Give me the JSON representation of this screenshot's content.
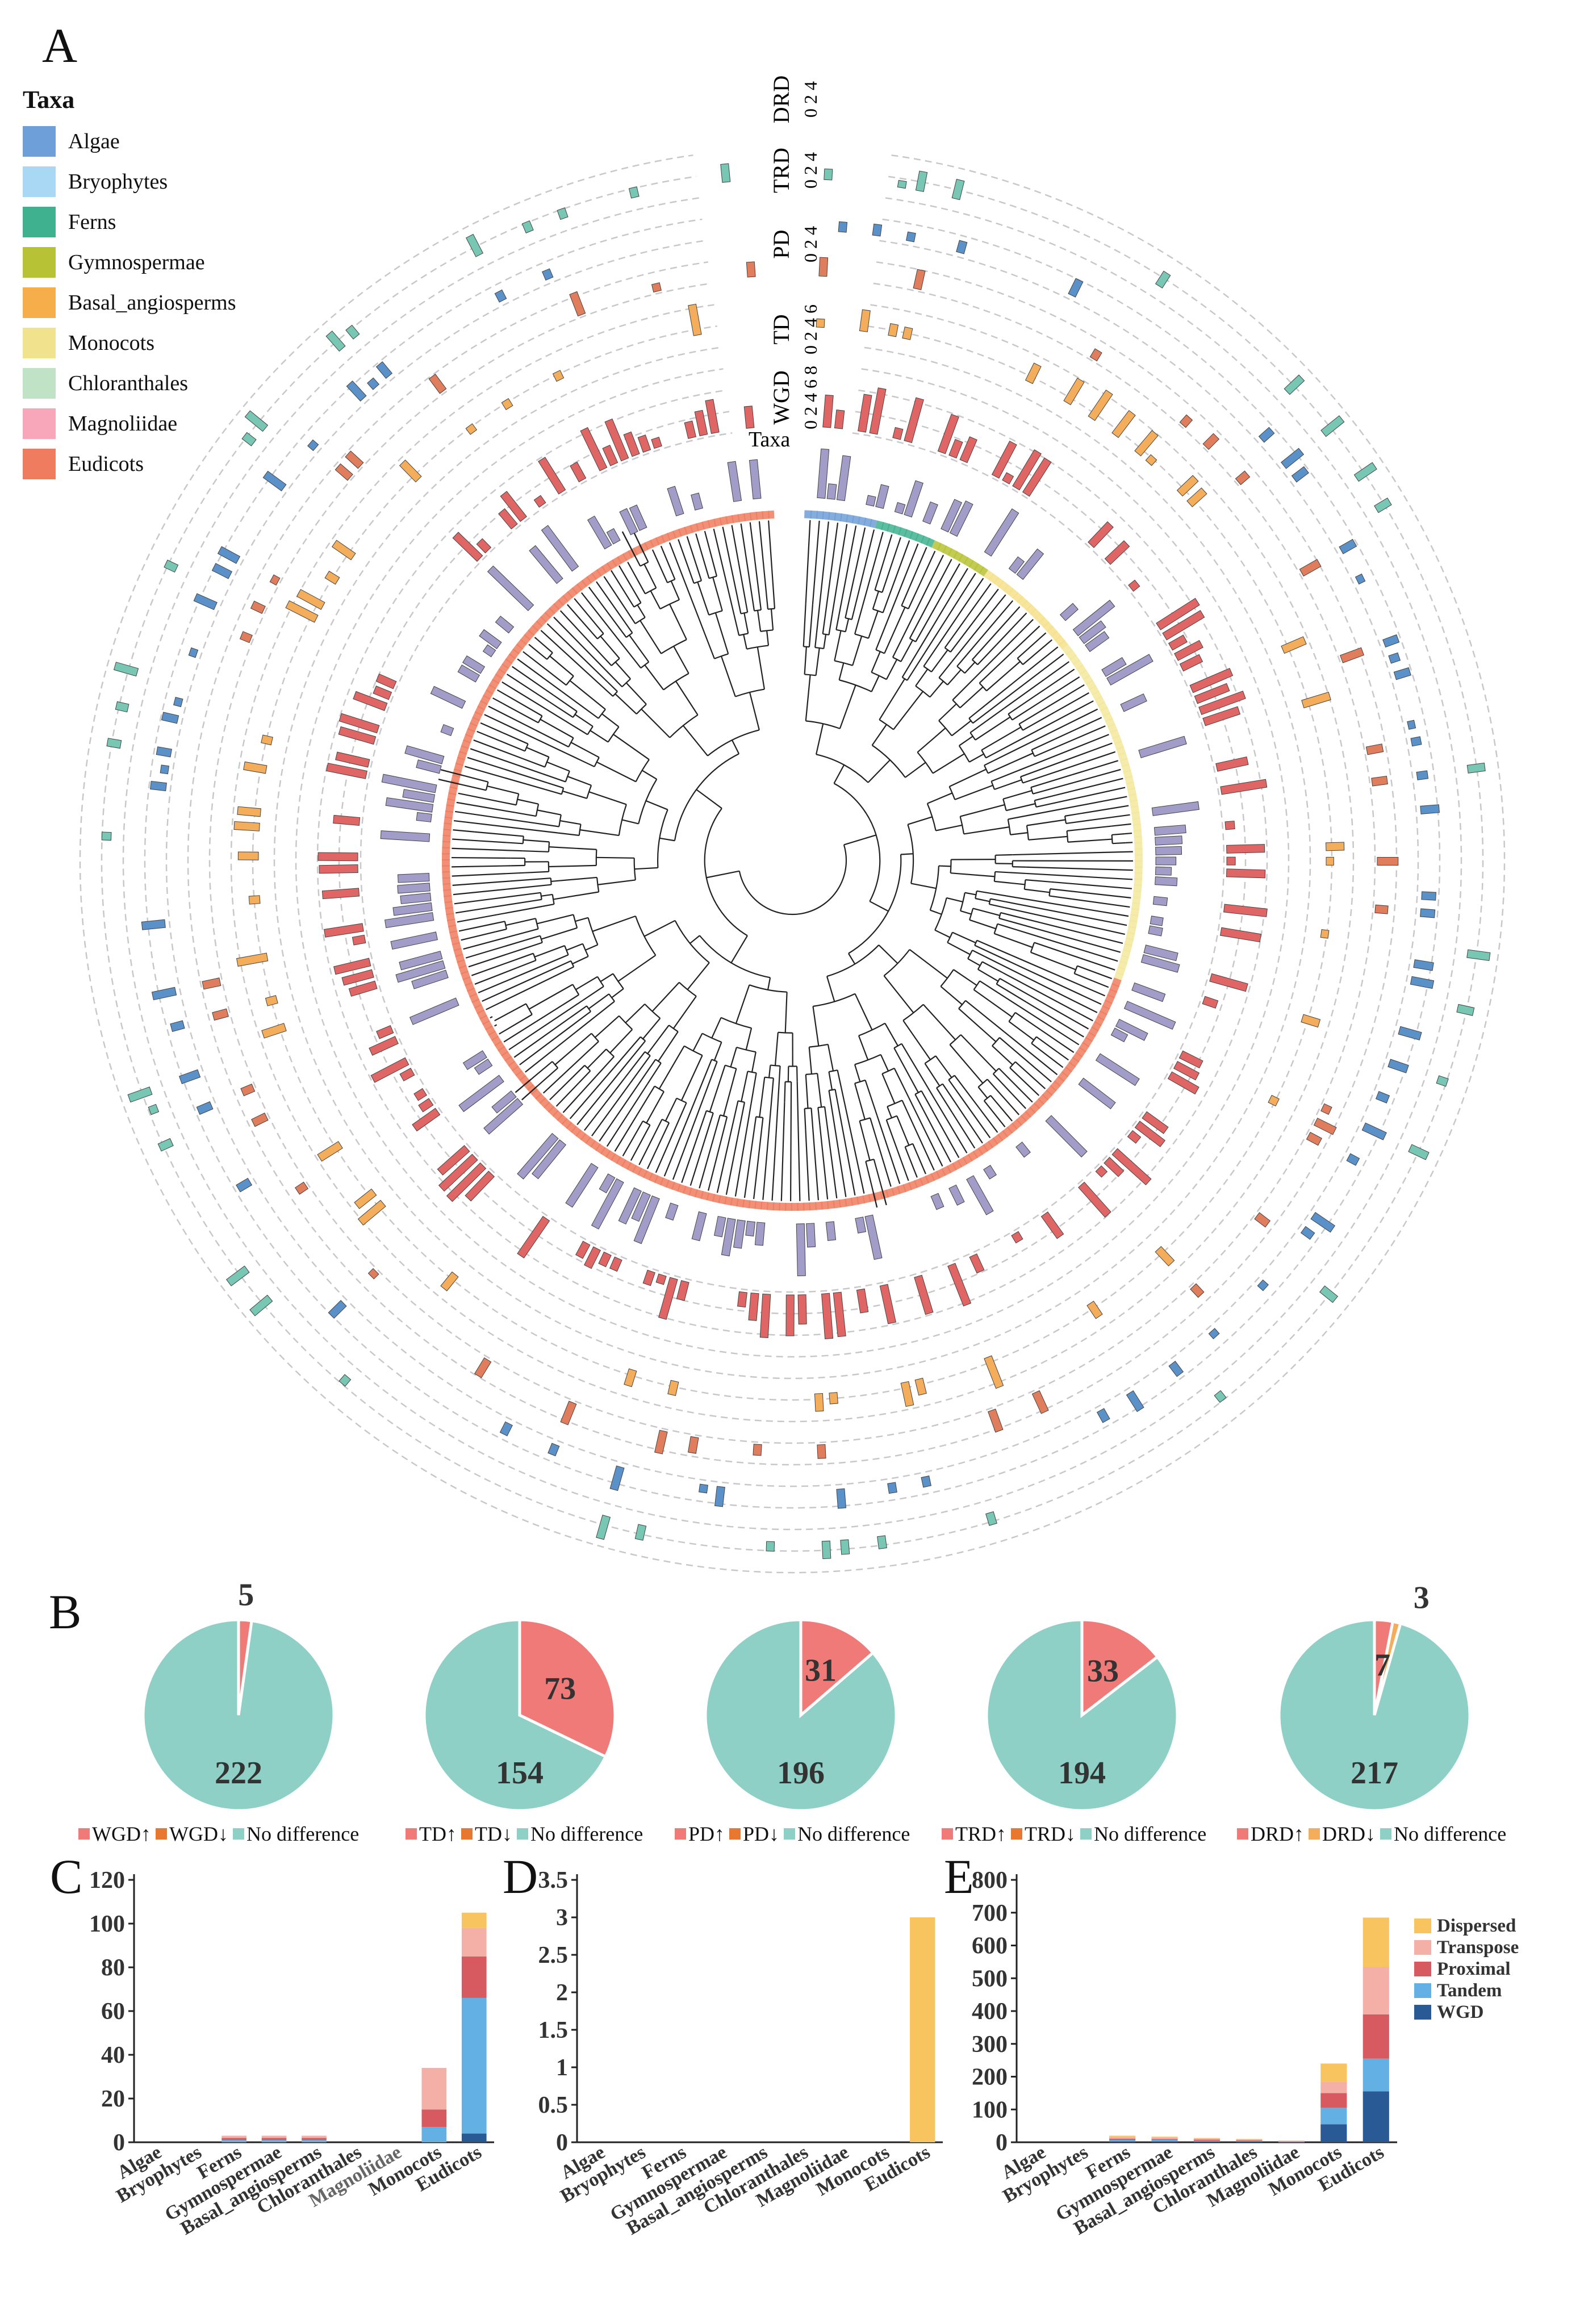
{
  "panels": {
    "a": "A",
    "b": "B",
    "c": "C",
    "d": "D",
    "e": "E"
  },
  "taxa_legend": {
    "title": "Taxa",
    "items": [
      {
        "label": "Algae",
        "color": "#6f9fd8"
      },
      {
        "label": "Bryophytes",
        "color": "#a9d8f5"
      },
      {
        "label": "Ferns",
        "color": "#3fb18f"
      },
      {
        "label": "Gymnospermae",
        "color": "#b7c234"
      },
      {
        "label": "Basal_angiosperms",
        "color": "#f6ae4b"
      },
      {
        "label": "Monocots",
        "color": "#f1e28e"
      },
      {
        "label": "Chloranthales",
        "color": "#bfe3c4"
      },
      {
        "label": "Magnoliidae",
        "color": "#f7a7b9"
      },
      {
        "label": "Eudicots",
        "color": "#ef7c5e"
      }
    ]
  },
  "ring_labels": {
    "taxa": "Taxa",
    "wgd": "WGD",
    "td": "TD",
    "pd": "PD",
    "trd": "TRD",
    "drd": "DRD"
  },
  "ring_scales": {
    "wgd": "0 2 4 6 8",
    "td": "0 2 4 6",
    "pd": "0 2 4",
    "trd": "0 2 4",
    "drd": "0 2 4"
  },
  "colors": {
    "wgd": "#e06666",
    "td": "#f4ad5a",
    "pd": "#e07d5c",
    "trd": "#5b91c9",
    "drd": "#78c6b4",
    "purple": "#a29cc8",
    "teal": "#8fd0c6",
    "salmon": "#f07a78"
  },
  "chart_data": [
    {
      "type": "pie",
      "panel": "B",
      "title": "WGD",
      "slices": [
        {
          "name": "WGD↑",
          "value": 5,
          "label": "5"
        },
        {
          "name": "WGD↓",
          "value": 0
        },
        {
          "name": "No difference",
          "value": 222,
          "label": "222"
        }
      ],
      "legend": [
        "WGD↑",
        "WGD↓",
        "No difference"
      ]
    },
    {
      "type": "pie",
      "panel": "B",
      "title": "TD",
      "slices": [
        {
          "name": "TD↑",
          "value": 73,
          "label": "73"
        },
        {
          "name": "TD↓",
          "value": 0
        },
        {
          "name": "No difference",
          "value": 154,
          "label": "154"
        }
      ],
      "legend": [
        "TD↑",
        "TD↓",
        "No difference"
      ]
    },
    {
      "type": "pie",
      "panel": "B",
      "title": "PD",
      "slices": [
        {
          "name": "PD↑",
          "value": 31,
          "label": "31"
        },
        {
          "name": "PD↓",
          "value": 0
        },
        {
          "name": "No difference",
          "value": 196,
          "label": "196"
        }
      ],
      "legend": [
        "PD↑",
        "PD↓",
        "No difference"
      ]
    },
    {
      "type": "pie",
      "panel": "B",
      "title": "TRD",
      "slices": [
        {
          "name": "TRD↑",
          "value": 33,
          "label": "33"
        },
        {
          "name": "TRD↓",
          "value": 0
        },
        {
          "name": "No difference",
          "value": 194,
          "label": "194"
        }
      ],
      "legend": [
        "TRD↑",
        "TRD↓",
        "No difference"
      ]
    },
    {
      "type": "pie",
      "panel": "B",
      "title": "DRD",
      "slices": [
        {
          "name": "DRD↑",
          "value": 7,
          "label": "7"
        },
        {
          "name": "DRD↓",
          "value": 3,
          "label": "3"
        },
        {
          "name": "No difference",
          "value": 217,
          "label": "217"
        }
      ],
      "legend": [
        "DRD↑",
        "DRD↓",
        "No difference"
      ]
    },
    {
      "type": "bar",
      "panel": "C",
      "stacked": true,
      "categories": [
        "Algae",
        "Bryophytes",
        "Ferns",
        "Gymnospermae",
        "Basal_angiosperms",
        "Chloranthales",
        "Magnoliidae",
        "Monocots",
        "Eudicots"
      ],
      "yticks": [
        0,
        20,
        40,
        60,
        80,
        100,
        120
      ],
      "ylim": [
        0,
        120
      ],
      "series": [
        {
          "name": "WGD",
          "color": "#2a5a96",
          "values": [
            0,
            0,
            0,
            0,
            0,
            0,
            0,
            0,
            4
          ]
        },
        {
          "name": "Tandem",
          "color": "#63b0e4",
          "values": [
            0,
            0,
            1,
            1,
            1,
            0,
            0,
            7,
            62
          ]
        },
        {
          "name": "Proximal",
          "color": "#d65a60",
          "values": [
            0,
            0,
            1,
            1,
            1,
            0,
            0,
            8,
            19
          ]
        },
        {
          "name": "Transpose",
          "color": "#f4b0a6",
          "values": [
            0,
            0,
            1,
            1,
            1,
            0,
            0,
            19,
            13
          ]
        },
        {
          "name": "Dispersed",
          "color": "#f8c45f",
          "values": [
            0,
            0,
            0,
            0,
            0,
            0,
            0,
            0,
            7
          ]
        }
      ]
    },
    {
      "type": "bar",
      "panel": "D",
      "stacked": true,
      "categories": [
        "Algae",
        "Bryophytes",
        "Ferns",
        "Gymnospermae",
        "Basal_angiosperms",
        "Chloranthales",
        "Magnoliidae",
        "Monocots",
        "Eudicots"
      ],
      "yticks": [
        "0",
        "0.5",
        "1",
        "1.5",
        "2",
        "2.5",
        "3",
        "3.5"
      ],
      "ylim": [
        0,
        3.5
      ],
      "series": [
        {
          "name": "Dispersed",
          "color": "#f8c45f",
          "values": [
            0,
            0,
            0,
            0,
            0,
            0,
            0,
            0,
            3
          ]
        }
      ]
    },
    {
      "type": "bar",
      "panel": "E",
      "stacked": true,
      "categories": [
        "Algae",
        "Bryophytes",
        "Ferns",
        "Gymnospermae",
        "Basal_angiosperms",
        "Chloranthales",
        "Magnoliidae",
        "Monocots",
        "Eudicots"
      ],
      "yticks": [
        0,
        100,
        200,
        300,
        400,
        500,
        600,
        700,
        800
      ],
      "ylim": [
        0,
        800
      ],
      "series": [
        {
          "name": "WGD",
          "color": "#2a5a96",
          "values": [
            0,
            0,
            3,
            3,
            2,
            2,
            1,
            55,
            155
          ]
        },
        {
          "name": "Tandem",
          "color": "#63b0e4",
          "values": [
            0,
            0,
            4,
            4,
            3,
            2,
            1,
            50,
            100
          ]
        },
        {
          "name": "Proximal",
          "color": "#d65a60",
          "values": [
            0,
            0,
            4,
            3,
            3,
            2,
            1,
            45,
            135
          ]
        },
        {
          "name": "Transpose",
          "color": "#f4b0a6",
          "values": [
            0,
            0,
            5,
            4,
            3,
            2,
            1,
            35,
            145
          ]
        },
        {
          "name": "Dispersed",
          "color": "#f8c45f",
          "values": [
            0,
            0,
            4,
            3,
            2,
            2,
            1,
            55,
            150
          ]
        }
      ],
      "legend": [
        "Dispersed",
        "Transpose",
        "Proximal",
        "Tandem",
        "WGD"
      ]
    }
  ]
}
